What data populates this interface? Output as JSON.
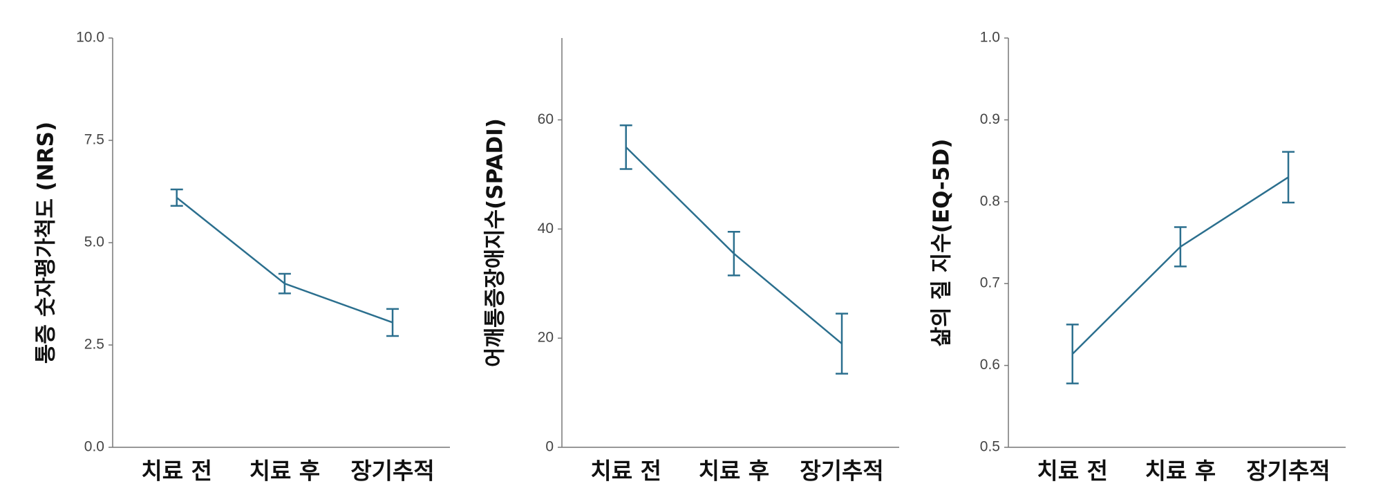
{
  "chart_data": [
    {
      "type": "line",
      "y_label": "통증 숫자평가척도 (NRS)",
      "categories": [
        "치료 전",
        "치료 후",
        "장기추적"
      ],
      "series": [
        {
          "color": "#2b6f8e",
          "values": [
            6.1,
            4.0,
            3.05
          ],
          "errors": [
            0.2,
            0.24,
            0.33
          ]
        }
      ],
      "ylim": [
        0,
        10
      ],
      "yticks": [
        {
          "value": 0,
          "label": "0.0"
        },
        {
          "value": 2.5,
          "label": "2.5"
        },
        {
          "value": 5,
          "label": "5.0"
        },
        {
          "value": 7.5,
          "label": "7.5"
        },
        {
          "value": 10,
          "label": "10.0"
        }
      ]
    },
    {
      "type": "line",
      "y_label": "어깨통증장애지수(SPADI)",
      "categories": [
        "치료 전",
        "치료 후",
        "장기추적"
      ],
      "series": [
        {
          "color": "#2b6f8e",
          "values": [
            55,
            35.5,
            19
          ],
          "errors": [
            4,
            4,
            5.5
          ]
        }
      ],
      "ylim": [
        0,
        75
      ],
      "yticks": [
        0,
        20,
        40,
        60
      ]
    },
    {
      "type": "line",
      "y_label": "삶의 질 지수(EQ-5D)",
      "categories": [
        "치료 전",
        "치료 후",
        "장기추적"
      ],
      "series": [
        {
          "color": "#2b6f8e",
          "values": [
            0.614,
            0.745,
            0.83
          ],
          "errors": [
            0.036,
            0.024,
            0.031
          ]
        }
      ],
      "ylim": [
        0.5,
        1.0
      ],
      "yticks": [
        0.5,
        0.6,
        0.7,
        0.8,
        0.9,
        {
          "value": 1.0,
          "label": "1.0"
        }
      ]
    }
  ]
}
